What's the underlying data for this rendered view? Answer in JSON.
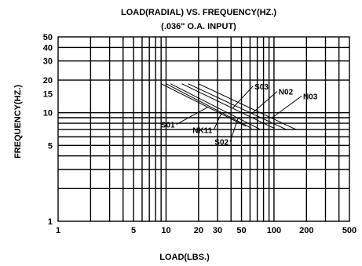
{
  "chart_data": {
    "type": "line",
    "title": "LOAD(RADIAL) VS. FREQUENCY(HZ.)",
    "subtitle": "(.036\" O.A. INPUT)",
    "xlabel": "LOAD(LBS.)",
    "ylabel": "FREQUENCY(HZ.)",
    "x_scale": "log",
    "y_scale": "log",
    "xlim": [
      1,
      500
    ],
    "ylim": [
      1,
      50
    ],
    "grid": true,
    "x_ticks": [
      "1",
      "5",
      "10",
      "20",
      "30",
      "50",
      "100",
      "200",
      "500"
    ],
    "y_ticks": [
      "1",
      "5",
      "10",
      "15",
      "20",
      "30",
      "40",
      "50"
    ],
    "series": [
      {
        "name": "S01",
        "x": [
          9,
          55
        ],
        "y": [
          18.5,
          7.5
        ],
        "label_pos": "bottom-left"
      },
      {
        "name": "NK11",
        "x": [
          10,
          62
        ],
        "y": [
          18.5,
          7.2
        ],
        "label_pos": "bottom"
      },
      {
        "name": "S02",
        "x": [
          11,
          75
        ],
        "y": [
          18.5,
          7.0
        ],
        "label_pos": "bottom"
      },
      {
        "name": "S03",
        "x": [
          14,
          100
        ],
        "y": [
          18.5,
          7.2
        ],
        "label_pos": "top"
      },
      {
        "name": "N02",
        "x": [
          16,
          130
        ],
        "y": [
          18.5,
          7.0
        ],
        "label_pos": "top"
      },
      {
        "name": "N03",
        "x": [
          20,
          160
        ],
        "y": [
          18.5,
          7.0
        ],
        "label_pos": "top"
      }
    ]
  }
}
